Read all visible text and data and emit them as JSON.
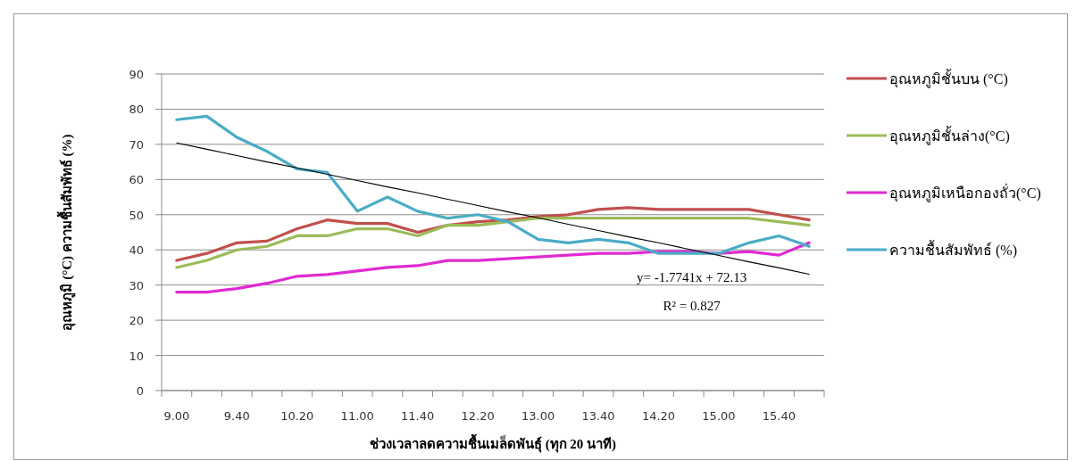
{
  "chart_data": {
    "type": "line",
    "xlabel": "ช่วงเวลาลดความชื้นเมล็ดพันธุ์ (ทุก 20 นาที)",
    "ylabel": "อุณหภูมิ (°C) ความชื้นสัมพัทธ์ (%)",
    "categories": [
      "9.00",
      null,
      "9.40",
      null,
      "10.20",
      null,
      "11.00",
      null,
      "11.40",
      null,
      "12.20",
      null,
      "13.00",
      null,
      "13.40",
      null,
      "14.20",
      null,
      "15.00",
      null,
      "15.40",
      null
    ],
    "ylim": [
      0,
      90
    ],
    "yticks": [
      0,
      10,
      20,
      30,
      40,
      50,
      60,
      70,
      80,
      90
    ],
    "grid": "y",
    "legend": "right",
    "marker": "none",
    "line_style": "solid",
    "series": [
      {
        "name": "อุณหภูมิชั้นบน (°C)",
        "color": "#c0504d",
        "values": [
          37,
          39,
          42,
          42.5,
          46,
          48.5,
          47.5,
          47.5,
          45,
          47,
          48,
          48.5,
          49.5,
          50,
          51.5,
          52,
          51.5,
          51.5,
          51.5,
          51.5,
          50,
          48.5
        ]
      },
      {
        "name": "อุณหภูมิชั้นล่าง(°C)",
        "color": "#9bbb59",
        "values": [
          35,
          37,
          40,
          41,
          44,
          44,
          46,
          46,
          44,
          47,
          47,
          48,
          49,
          49,
          49,
          49,
          49,
          49,
          49,
          49,
          48,
          47
        ]
      },
      {
        "name": "อุณหภูมิเหนือกองถั่ว(°C)",
        "color": "#e02ad2",
        "values": [
          28,
          28,
          29,
          30.5,
          32.5,
          33,
          34,
          35,
          35.5,
          37,
          37,
          37.5,
          38,
          38.5,
          39,
          39,
          39.5,
          39.5,
          39,
          39.5,
          38.5,
          42
        ]
      },
      {
        "name": "ความชื้นสัมพัทธ์ (%)",
        "color": "#4bacc6",
        "values": [
          77,
          78,
          72,
          68,
          63,
          62,
          51,
          55,
          51,
          49,
          50,
          48,
          43,
          42,
          43,
          42,
          39,
          39,
          39,
          42,
          44,
          41
        ]
      },
      {
        "color": "#000000",
        "values": [
          70.4,
          68.6,
          66.8,
          65.0,
          63.3,
          61.5,
          59.7,
          57.9,
          56.2,
          54.4,
          52.6,
          50.8,
          49.1,
          47.3,
          45.5,
          43.7,
          42.0,
          40.2,
          38.4,
          36.6,
          34.9,
          33.1
        ]
      }
    ],
    "annotations": [
      "y= -1.7741x + 72.13",
      "R² = 0.827"
    ]
  }
}
